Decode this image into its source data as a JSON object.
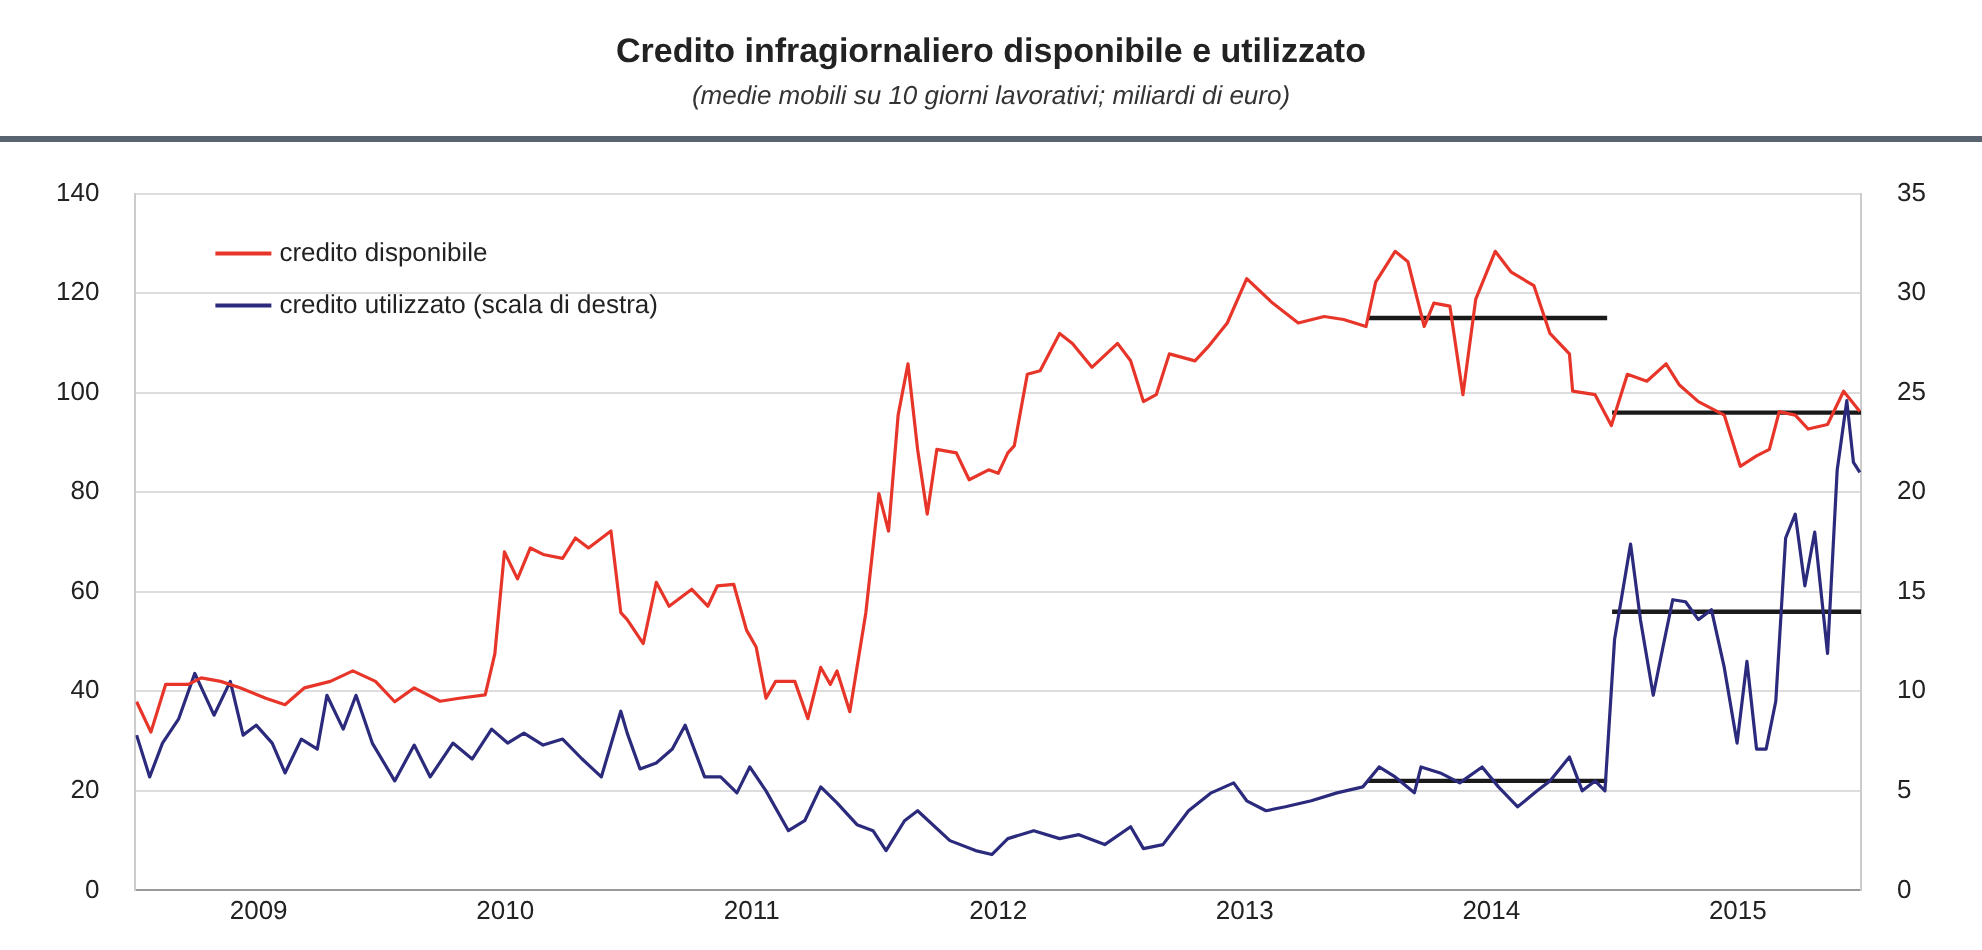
{
  "chart_data": {
    "type": "line",
    "title": "Credito infragiornaliero disponibile e utilizzato",
    "subtitle": "(medie mobili su 10 giorni lavorativi; miliardi di euro)",
    "xlim": [
      2009,
      2016
    ],
    "xticks": [
      {
        "value": 2009.5,
        "label": "2009"
      },
      {
        "value": 2010.5,
        "label": "2010"
      },
      {
        "value": 2011.5,
        "label": "2011"
      },
      {
        "value": 2012.5,
        "label": "2012"
      },
      {
        "value": 2013.5,
        "label": "2013"
      },
      {
        "value": 2014.5,
        "label": "2014"
      },
      {
        "value": 2015.5,
        "label": "2015"
      }
    ],
    "ylim": [
      0,
      140
    ],
    "yticks": [
      0,
      20,
      40,
      60,
      80,
      100,
      120,
      140
    ],
    "y2lim": [
      0,
      35
    ],
    "y2ticks": [
      0,
      5,
      10,
      15,
      20,
      25,
      30,
      35
    ],
    "grid": "y",
    "legend": "top left",
    "marker": "none",
    "line_style": "solid",
    "series": [
      {
        "name": "credito disponibile",
        "color": "#e8352a",
        "x": [
          2009.005,
          2009.063,
          2009.123,
          2009.215,
          2009.267,
          2009.346,
          2009.424,
          2009.529,
          2009.607,
          2009.686,
          2009.791,
          2009.882,
          2009.974,
          2010.052,
          2010.131,
          2010.236,
          2010.314,
          2010.419,
          2010.458,
          2010.497,
          2010.55,
          2010.602,
          2010.654,
          2010.733,
          2010.785,
          2010.838,
          2010.929,
          2010.969,
          2010.995,
          2011.06,
          2011.113,
          2011.165,
          2011.257,
          2011.322,
          2011.361,
          2011.427,
          2011.479,
          2011.518,
          2011.558,
          2011.597,
          2011.675,
          2011.728,
          2011.78,
          2011.819,
          2011.846,
          2011.898,
          2011.963,
          2012.016,
          2012.055,
          2012.094,
          2012.134,
          2012.173,
          2012.212,
          2012.251,
          2012.33,
          2012.382,
          2012.461,
          2012.5,
          2012.539,
          2012.565,
          2012.618,
          2012.67,
          2012.749,
          2012.801,
          2012.88,
          2012.984,
          2013.037,
          2013.089,
          2013.141,
          2013.194,
          2013.298,
          2013.351,
          2013.429,
          2013.508,
          2013.613,
          2013.717,
          2013.822,
          2013.901,
          2013.992,
          2014.031,
          2014.11,
          2014.162,
          2014.228,
          2014.267,
          2014.332,
          2014.385,
          2014.437,
          2014.516,
          2014.581,
          2014.673,
          2014.738,
          2014.817,
          2014.83,
          2014.921,
          2014.987,
          2015.052,
          2015.131,
          2015.209,
          2015.262,
          2015.34,
          2015.445,
          2015.51,
          2015.576,
          2015.628,
          2015.668,
          2015.733,
          2015.785,
          2015.864,
          2015.929,
          2015.995
        ],
        "values": [
          37.9,
          31.8,
          41.4,
          41.4,
          42.7,
          42,
          40.7,
          38.6,
          37.3,
          40.7,
          42,
          44.1,
          42,
          37.9,
          40.7,
          38,
          38.6,
          39.3,
          47.5,
          68,
          62.6,
          68.8,
          67.5,
          66.7,
          70.8,
          68.8,
          72.2,
          55.8,
          54.4,
          49.6,
          61.9,
          57.1,
          60.5,
          57.1,
          61.2,
          61.5,
          52.3,
          48.9,
          38.6,
          42,
          42,
          34.5,
          44.8,
          41.4,
          44.1,
          35.9,
          55.8,
          79.7,
          72.2,
          95.5,
          105.8,
          88.6,
          75.6,
          88.6,
          87.9,
          82.5,
          84.5,
          83.8,
          87.9,
          89.3,
          103.7,
          104.4,
          111.9,
          109.9,
          105.1,
          109.9,
          106.4,
          98.2,
          99.6,
          107.8,
          106.4,
          109.2,
          114,
          122.9,
          118,
          114,
          115.3,
          114.7,
          113.3,
          122.2,
          128.4,
          126.3,
          113.3,
          118,
          117.4,
          99.6,
          118.8,
          128.4,
          124.2,
          121.5,
          111.9,
          107.8,
          100.3,
          99.6,
          93.4,
          103.7,
          102.3,
          105.8,
          101.6,
          98.2,
          95.5,
          85.2,
          87.3,
          88.6,
          96.2,
          95.5,
          92.7,
          93.6,
          100.3,
          96.2
        ]
      },
      {
        "name": "credito utilizzato (scala di destra)",
        "color": "#2b2a7c",
        "axis": "y2",
        "x": [
          2009.005,
          2009.058,
          2009.11,
          2009.175,
          2009.241,
          2009.319,
          2009.385,
          2009.437,
          2009.49,
          2009.555,
          2009.607,
          2009.673,
          2009.738,
          2009.777,
          2009.843,
          2009.895,
          2009.961,
          2010.052,
          2010.131,
          2010.196,
          2010.288,
          2010.366,
          2010.445,
          2010.51,
          2010.576,
          2010.654,
          2010.733,
          2010.812,
          2010.89,
          2010.969,
          2010.995,
          2011.047,
          2011.113,
          2011.178,
          2011.23,
          2011.309,
          2011.374,
          2011.44,
          2011.492,
          2011.558,
          2011.649,
          2011.715,
          2011.78,
          2011.846,
          2011.927,
          2011.992,
          2012.045,
          2012.12,
          2012.173,
          2012.304,
          2012.408,
          2012.474,
          2012.539,
          2012.644,
          2012.749,
          2012.827,
          2012.932,
          2013.037,
          2013.089,
          2013.168,
          2013.272,
          2013.364,
          2013.455,
          2013.508,
          2013.586,
          2013.665,
          2013.77,
          2013.874,
          2013.979,
          2014.045,
          2014.11,
          2014.188,
          2014.215,
          2014.293,
          2014.372,
          2014.463,
          2014.529,
          2014.607,
          2014.686,
          2014.738,
          2014.817,
          2014.869,
          2014.921,
          2014.961,
          2015.0,
          2015.065,
          2015.105,
          2015.157,
          2015.196,
          2015.236,
          2015.288,
          2015.34,
          2015.393,
          2015.445,
          2015.497,
          2015.537,
          2015.576,
          2015.615,
          2015.654,
          2015.694,
          2015.733,
          2015.772,
          2015.812,
          2015.864,
          2015.903,
          2015.942,
          2015.969,
          2015.995
        ],
        "values": [
          7.8,
          5.7,
          7.4,
          8.6,
          10.9,
          8.8,
          10.5,
          7.8,
          8.3,
          7.4,
          5.9,
          7.6,
          7.1,
          9.8,
          8.1,
          9.8,
          7.4,
          5.5,
          7.3,
          5.7,
          7.4,
          6.6,
          8.1,
          7.4,
          7.9,
          7.3,
          7.6,
          6.6,
          5.7,
          9,
          7.9,
          6.1,
          6.4,
          7.1,
          8.3,
          5.7,
          5.7,
          4.9,
          6.2,
          5,
          3,
          3.5,
          5.2,
          4.4,
          3.3,
          3,
          2,
          3.5,
          4,
          2.5,
          2,
          1.8,
          2.6,
          3,
          2.6,
          2.8,
          2.3,
          3.2,
          2.1,
          2.3,
          4,
          4.9,
          5.4,
          4.5,
          4,
          4.2,
          4.5,
          4.9,
          5.2,
          6.2,
          5.7,
          4.9,
          6.2,
          5.9,
          5.4,
          6.2,
          5.2,
          4.2,
          5,
          5.5,
          6.7,
          5,
          5.5,
          5,
          12.6,
          17.4,
          13.6,
          9.8,
          12.2,
          14.6,
          14.5,
          13.6,
          14.1,
          11.2,
          7.4,
          11.5,
          7.1,
          7.1,
          9.5,
          17.7,
          18.9,
          15.3,
          18,
          11.9,
          21.1,
          24.6,
          21.5,
          21
        ]
      },
      {
        "color": "#1a1a1a",
        "x": [
          2014.0,
          2014.97
        ],
        "values": [
          115,
          115
        ]
      },
      {
        "color": "#1a1a1a",
        "x": [
          2014.99,
          2016.0
        ],
        "values": [
          96,
          96
        ]
      },
      {
        "color": "#1a1a1a",
        "axis": "y2",
        "x": [
          2014.0,
          2014.97
        ],
        "values": [
          5.5,
          5.5
        ]
      },
      {
        "color": "#1a1a1a",
        "axis": "y2",
        "x": [
          2014.99,
          2016.0
        ],
        "values": [
          14,
          14
        ]
      }
    ]
  }
}
